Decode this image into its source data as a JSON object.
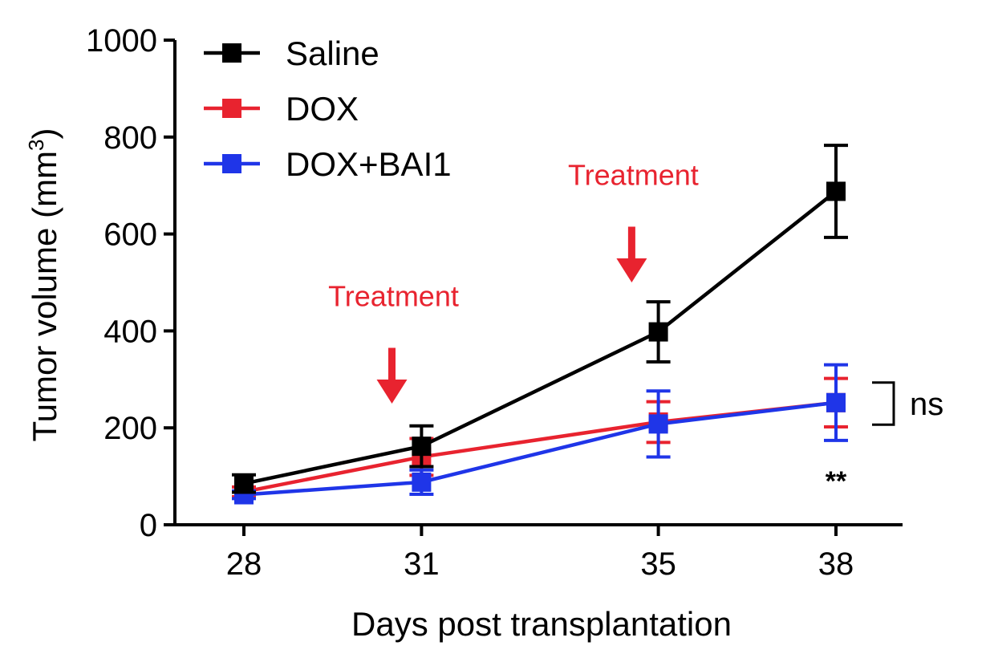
{
  "chart_data": {
    "type": "line",
    "title": "",
    "xlabel": "Days post transplantation",
    "ylabel_main": "Tumor volume (mm",
    "ylabel_sup": "3",
    "ylabel_close": ")",
    "x": [
      28,
      31,
      35,
      38
    ],
    "x_tick_labels": [
      "28",
      "31",
      "35",
      "38"
    ],
    "ylim": [
      0,
      1000
    ],
    "y_ticks": [
      0,
      200,
      400,
      600,
      800,
      1000
    ],
    "y_tick_labels": [
      "0",
      "200",
      "400",
      "600",
      "800",
      "1000"
    ],
    "grid": false,
    "legend_position": "top-left",
    "series": [
      {
        "name": "Saline",
        "color": "#000000",
        "values": [
          85,
          162,
          398,
          688
        ],
        "errors": [
          18,
          42,
          62,
          95
        ]
      },
      {
        "name": "DOX",
        "color": "#e8232f",
        "values": [
          68,
          140,
          212,
          252
        ],
        "errors": [
          10,
          38,
          42,
          50
        ]
      },
      {
        "name": "DOX+BAI1",
        "color": "#1f35e8",
        "values": [
          62,
          88,
          208,
          252
        ],
        "errors": [
          8,
          25,
          68,
          78
        ]
      }
    ],
    "annotations": {
      "treatments": [
        {
          "label": "Treatment",
          "x": 30.5,
          "y_arrow_top": 365,
          "y_arrow_tip": 250
        },
        {
          "label": "Treatment",
          "x": 34.55,
          "y_arrow_top": 615,
          "y_arrow_tip": 500
        }
      ],
      "ns_label": "ns",
      "ns_range": [
        200,
        300
      ],
      "significance_label": "**",
      "significance_y": 108
    }
  }
}
